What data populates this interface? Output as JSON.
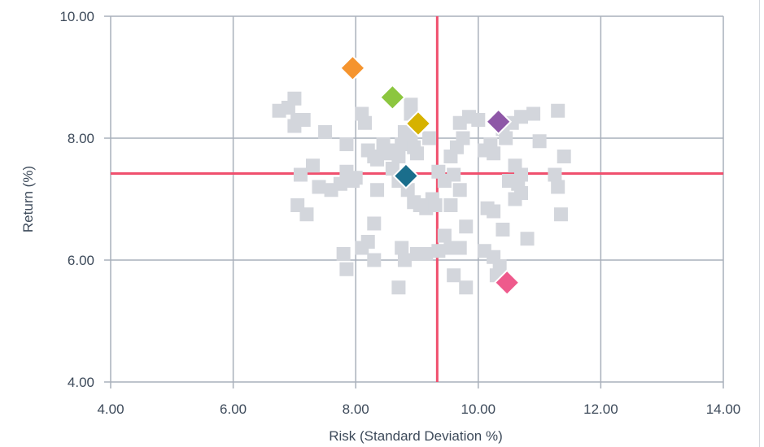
{
  "chart_data": {
    "type": "scatter",
    "title": "",
    "xlabel": "Risk (Standard Deviation %)",
    "ylabel": "Return (%)",
    "xlim": [
      4,
      14
    ],
    "ylim": [
      4,
      10
    ],
    "x_ticks": [
      "4.00",
      "6.00",
      "8.00",
      "10.00",
      "12.00",
      "14.00"
    ],
    "y_ticks": [
      "4.00",
      "6.00",
      "8.00",
      "10.00"
    ],
    "grid": true,
    "reference_lines": {
      "x": 9.33,
      "y": 7.42,
      "color": "#f0506e"
    },
    "peer_points": {
      "color": "#d3d6dc",
      "marker": "square",
      "points": [
        [
          6.75,
          8.45
        ],
        [
          7.0,
          8.65
        ],
        [
          7.05,
          8.3
        ],
        [
          7.0,
          8.2
        ],
        [
          7.15,
          8.3
        ],
        [
          6.9,
          8.5
        ],
        [
          7.5,
          8.1
        ],
        [
          7.85,
          7.9
        ],
        [
          7.1,
          7.4
        ],
        [
          7.3,
          7.55
        ],
        [
          7.4,
          7.2
        ],
        [
          7.6,
          7.15
        ],
        [
          7.75,
          7.25
        ],
        [
          7.95,
          7.3
        ],
        [
          7.05,
          6.9
        ],
        [
          7.2,
          6.75
        ],
        [
          8.1,
          8.4
        ],
        [
          8.15,
          8.25
        ],
        [
          8.2,
          7.8
        ],
        [
          8.3,
          7.7
        ],
        [
          8.35,
          7.65
        ],
        [
          8.45,
          7.9
        ],
        [
          8.5,
          7.75
        ],
        [
          8.6,
          7.8
        ],
        [
          8.7,
          7.7
        ],
        [
          8.75,
          7.9
        ],
        [
          8.8,
          8.1
        ],
        [
          8.9,
          8.0
        ],
        [
          8.95,
          7.85
        ],
        [
          9.0,
          7.75
        ],
        [
          8.6,
          7.5
        ],
        [
          8.7,
          7.3
        ],
        [
          8.85,
          7.15
        ],
        [
          8.95,
          6.95
        ],
        [
          9.05,
          6.9
        ],
        [
          9.15,
          6.85
        ],
        [
          8.35,
          7.15
        ],
        [
          8.0,
          7.35
        ],
        [
          7.85,
          7.45
        ],
        [
          8.9,
          8.55
        ],
        [
          9.2,
          8.0
        ],
        [
          9.35,
          7.45
        ],
        [
          9.45,
          7.3
        ],
        [
          9.55,
          7.7
        ],
        [
          9.65,
          7.85
        ],
        [
          9.75,
          8.0
        ],
        [
          9.85,
          8.35
        ],
        [
          9.7,
          8.25
        ],
        [
          9.6,
          7.4
        ],
        [
          9.7,
          7.15
        ],
        [
          9.55,
          6.9
        ],
        [
          9.8,
          6.55
        ],
        [
          10.0,
          8.3
        ],
        [
          10.1,
          7.8
        ],
        [
          10.2,
          7.9
        ],
        [
          10.25,
          7.75
        ],
        [
          10.4,
          8.15
        ],
        [
          10.45,
          8.0
        ],
        [
          10.55,
          8.25
        ],
        [
          10.7,
          8.35
        ],
        [
          10.9,
          8.4
        ],
        [
          11.0,
          7.95
        ],
        [
          11.3,
          8.45
        ],
        [
          11.4,
          7.7
        ],
        [
          11.25,
          7.4
        ],
        [
          11.3,
          7.2
        ],
        [
          11.35,
          6.75
        ],
        [
          10.6,
          7.55
        ],
        [
          10.7,
          7.4
        ],
        [
          10.65,
          7.25
        ],
        [
          10.7,
          7.1
        ],
        [
          10.5,
          7.3
        ],
        [
          10.6,
          7.0
        ],
        [
          10.15,
          6.85
        ],
        [
          10.25,
          6.8
        ],
        [
          10.4,
          6.5
        ],
        [
          10.8,
          6.35
        ],
        [
          8.3,
          6.6
        ],
        [
          8.2,
          6.3
        ],
        [
          8.1,
          6.2
        ],
        [
          8.3,
          6.0
        ],
        [
          7.8,
          6.1
        ],
        [
          7.85,
          5.85
        ],
        [
          8.75,
          6.2
        ],
        [
          8.8,
          6.0
        ],
        [
          9.0,
          6.1
        ],
        [
          9.15,
          6.1
        ],
        [
          9.35,
          6.15
        ],
        [
          9.45,
          6.4
        ],
        [
          9.55,
          6.2
        ],
        [
          9.7,
          6.2
        ],
        [
          9.6,
          5.75
        ],
        [
          9.8,
          5.55
        ],
        [
          8.7,
          5.55
        ],
        [
          10.1,
          6.15
        ],
        [
          10.25,
          6.05
        ],
        [
          10.3,
          5.75
        ],
        [
          10.35,
          5.9
        ],
        [
          9.25,
          7.0
        ],
        [
          9.3,
          6.9
        ],
        [
          9.0,
          8.2
        ],
        [
          8.9,
          8.4
        ]
      ]
    },
    "highlight_points": [
      {
        "x": 7.95,
        "y": 9.15,
        "color": "#f5942e"
      },
      {
        "x": 8.6,
        "y": 8.67,
        "color": "#8cc63f"
      },
      {
        "x": 9.02,
        "y": 8.24,
        "color": "#d6b200"
      },
      {
        "x": 10.33,
        "y": 8.27,
        "color": "#8e57a7"
      },
      {
        "x": 8.82,
        "y": 7.38,
        "color": "#1a6e8c"
      },
      {
        "x": 10.47,
        "y": 5.63,
        "color": "#ee5a8c"
      }
    ]
  }
}
